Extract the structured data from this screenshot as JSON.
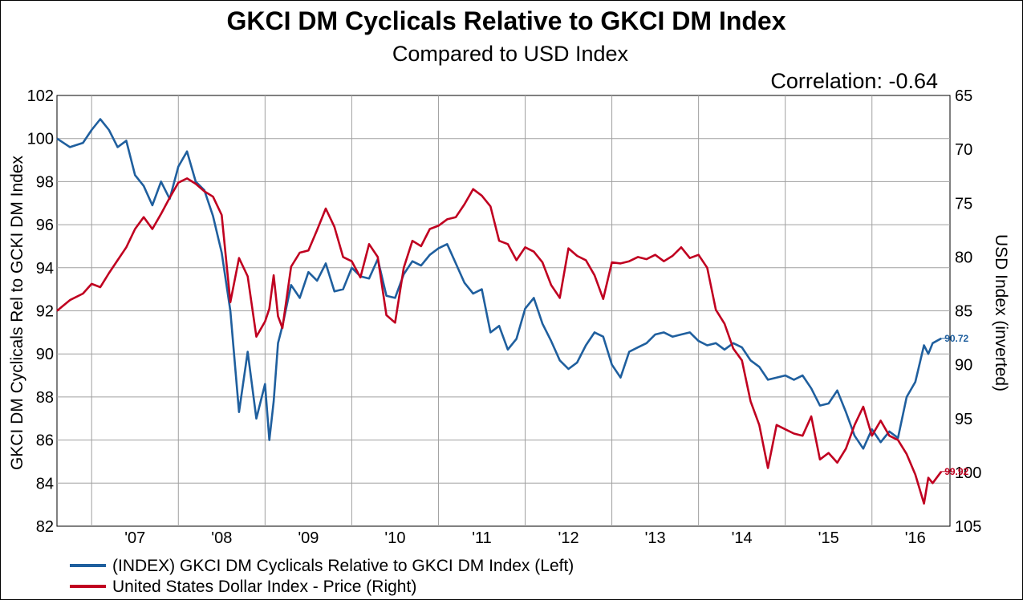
{
  "chart_data": {
    "type": "line",
    "title": "GKCI DM Cyclicals Relative to GKCI DM Index",
    "subtitle": "Compared to USD Index",
    "annotation": "Correlation: -0.64",
    "ylabel_left": "GKCI DM Cyclicals Rel to GCKI DM Index",
    "ylabel_right": "USD Index (inverted)",
    "grid": true,
    "y_left": {
      "min": 82,
      "max": 102,
      "ticks": [
        "82",
        "84",
        "86",
        "88",
        "90",
        "92",
        "94",
        "96",
        "98",
        "100",
        "102"
      ]
    },
    "y_right": {
      "min": 65,
      "max": 105,
      "inverted": true,
      "ticks": [
        "65",
        "70",
        "75",
        "80",
        "85",
        "90",
        "95",
        "100",
        "105"
      ]
    },
    "x_range": [
      2006.6,
      2016.9
    ],
    "x_ticks": [
      {
        "label": "'07",
        "pos": 2007.5
      },
      {
        "label": "'08",
        "pos": 2008.5
      },
      {
        "label": "'09",
        "pos": 2009.5
      },
      {
        "label": "'10",
        "pos": 2010.5
      },
      {
        "label": "'11",
        "pos": 2011.5
      },
      {
        "label": "'12",
        "pos": 2012.5
      },
      {
        "label": "'13",
        "pos": 2013.5
      },
      {
        "label": "'14",
        "pos": 2014.5
      },
      {
        "label": "'15",
        "pos": 2015.5
      },
      {
        "label": "'16",
        "pos": 2016.5
      }
    ],
    "x_gridlines": [
      2007,
      2008,
      2009,
      2010,
      2011,
      2012,
      2013,
      2014,
      2015,
      2016
    ],
    "series": [
      {
        "name": "(INDEX) GKCI DM Cyclicals Relative to GKCI DM Index  (Left)",
        "axis": "left",
        "color": "#1f5f9e",
        "last_value": "90.72",
        "x": [
          2006.6,
          2006.75,
          2006.9,
          2007.0,
          2007.1,
          2007.2,
          2007.3,
          2007.4,
          2007.5,
          2007.6,
          2007.7,
          2007.8,
          2007.9,
          2008.0,
          2008.1,
          2008.2,
          2008.3,
          2008.4,
          2008.5,
          2008.6,
          2008.7,
          2008.8,
          2008.9,
          2009.0,
          2009.05,
          2009.1,
          2009.15,
          2009.2,
          2009.3,
          2009.4,
          2009.5,
          2009.6,
          2009.7,
          2009.8,
          2009.9,
          2010.0,
          2010.1,
          2010.2,
          2010.3,
          2010.4,
          2010.5,
          2010.6,
          2010.7,
          2010.8,
          2010.9,
          2011.0,
          2011.1,
          2011.2,
          2011.3,
          2011.4,
          2011.5,
          2011.6,
          2011.7,
          2011.8,
          2011.9,
          2012.0,
          2012.1,
          2012.2,
          2012.3,
          2012.4,
          2012.5,
          2012.6,
          2012.7,
          2012.8,
          2012.9,
          2013.0,
          2013.1,
          2013.2,
          2013.3,
          2013.4,
          2013.5,
          2013.6,
          2013.7,
          2013.8,
          2013.9,
          2014.0,
          2014.1,
          2014.2,
          2014.3,
          2014.4,
          2014.5,
          2014.6,
          2014.7,
          2014.8,
          2014.9,
          2015.0,
          2015.1,
          2015.2,
          2015.3,
          2015.4,
          2015.5,
          2015.6,
          2015.7,
          2015.8,
          2015.9,
          2016.0,
          2016.1,
          2016.2,
          2016.3,
          2016.4,
          2016.5,
          2016.6,
          2016.65,
          2016.7,
          2016.8
        ],
        "values": [
          100.0,
          99.6,
          99.8,
          100.4,
          100.9,
          100.4,
          99.6,
          99.9,
          98.3,
          97.8,
          96.9,
          98.0,
          97.2,
          98.7,
          99.4,
          98.0,
          97.6,
          96.4,
          94.7,
          92.0,
          87.3,
          90.1,
          87.0,
          88.6,
          86.0,
          87.8,
          90.5,
          91.3,
          93.2,
          92.6,
          93.8,
          93.4,
          94.2,
          92.9,
          93.0,
          94.0,
          93.6,
          93.5,
          94.4,
          92.7,
          92.6,
          93.7,
          94.3,
          94.1,
          94.6,
          94.9,
          95.1,
          94.2,
          93.3,
          92.8,
          93.0,
          91.0,
          91.3,
          90.2,
          90.7,
          92.1,
          92.6,
          91.4,
          90.6,
          89.7,
          89.3,
          89.6,
          90.4,
          91.0,
          90.8,
          89.5,
          88.9,
          90.1,
          90.3,
          90.5,
          90.9,
          91.0,
          90.8,
          90.9,
          91.0,
          90.6,
          90.4,
          90.5,
          90.2,
          90.5,
          90.3,
          89.7,
          89.4,
          88.8,
          88.9,
          89.0,
          88.8,
          89.0,
          88.4,
          87.6,
          87.7,
          88.3,
          87.3,
          86.2,
          85.6,
          86.5,
          85.9,
          86.4,
          86.1,
          88.0,
          88.7,
          90.4,
          90.0,
          90.5,
          90.72
        ]
      },
      {
        "name": "United States Dollar Index - Price  (Right)",
        "axis": "right",
        "color": "#c00020",
        "last_value": "99.92",
        "x": [
          2006.6,
          2006.75,
          2006.9,
          2007.0,
          2007.1,
          2007.2,
          2007.3,
          2007.4,
          2007.5,
          2007.6,
          2007.7,
          2007.8,
          2007.9,
          2008.0,
          2008.1,
          2008.2,
          2008.3,
          2008.4,
          2008.5,
          2008.6,
          2008.7,
          2008.8,
          2008.9,
          2009.0,
          2009.05,
          2009.1,
          2009.15,
          2009.2,
          2009.3,
          2009.4,
          2009.5,
          2009.6,
          2009.7,
          2009.8,
          2009.9,
          2010.0,
          2010.1,
          2010.2,
          2010.3,
          2010.4,
          2010.5,
          2010.6,
          2010.7,
          2010.8,
          2010.9,
          2011.0,
          2011.1,
          2011.2,
          2011.3,
          2011.4,
          2011.5,
          2011.6,
          2011.7,
          2011.8,
          2011.9,
          2012.0,
          2012.1,
          2012.2,
          2012.3,
          2012.4,
          2012.5,
          2012.6,
          2012.7,
          2012.8,
          2012.9,
          2013.0,
          2013.1,
          2013.2,
          2013.3,
          2013.4,
          2013.5,
          2013.6,
          2013.7,
          2013.8,
          2013.9,
          2014.0,
          2014.1,
          2014.2,
          2014.3,
          2014.4,
          2014.5,
          2014.6,
          2014.7,
          2014.8,
          2014.9,
          2015.0,
          2015.1,
          2015.2,
          2015.3,
          2015.4,
          2015.5,
          2015.6,
          2015.7,
          2015.8,
          2015.9,
          2016.0,
          2016.1,
          2016.2,
          2016.3,
          2016.4,
          2016.5,
          2016.6,
          2016.65,
          2016.7,
          2016.8
        ],
        "values": [
          85.0,
          84.0,
          83.4,
          82.5,
          82.8,
          81.5,
          80.3,
          79.1,
          77.4,
          76.3,
          77.4,
          76.0,
          74.5,
          73.1,
          72.7,
          73.2,
          73.9,
          74.4,
          76.1,
          84.2,
          80.1,
          81.8,
          87.4,
          86.0,
          84.8,
          81.7,
          85.5,
          86.6,
          80.9,
          79.6,
          79.4,
          77.5,
          75.5,
          77.2,
          80.0,
          80.4,
          81.9,
          78.8,
          80.0,
          85.4,
          86.1,
          81.0,
          78.5,
          79.0,
          77.4,
          77.1,
          76.5,
          76.3,
          75.1,
          73.7,
          74.3,
          75.3,
          78.5,
          78.8,
          80.3,
          79.1,
          79.5,
          80.5,
          82.6,
          83.8,
          79.2,
          79.9,
          80.3,
          81.7,
          83.9,
          80.5,
          80.6,
          80.4,
          80.0,
          80.2,
          79.8,
          80.4,
          79.9,
          79.1,
          80.1,
          79.8,
          81.0,
          84.9,
          86.2,
          88.5,
          89.6,
          93.4,
          95.6,
          99.6,
          95.6,
          96.0,
          96.4,
          96.6,
          94.8,
          98.8,
          98.2,
          99.1,
          97.8,
          95.6,
          93.9,
          96.6,
          95.2,
          96.6,
          97.0,
          98.3,
          100.2,
          102.9,
          100.5,
          101.0,
          99.92
        ]
      }
    ]
  }
}
